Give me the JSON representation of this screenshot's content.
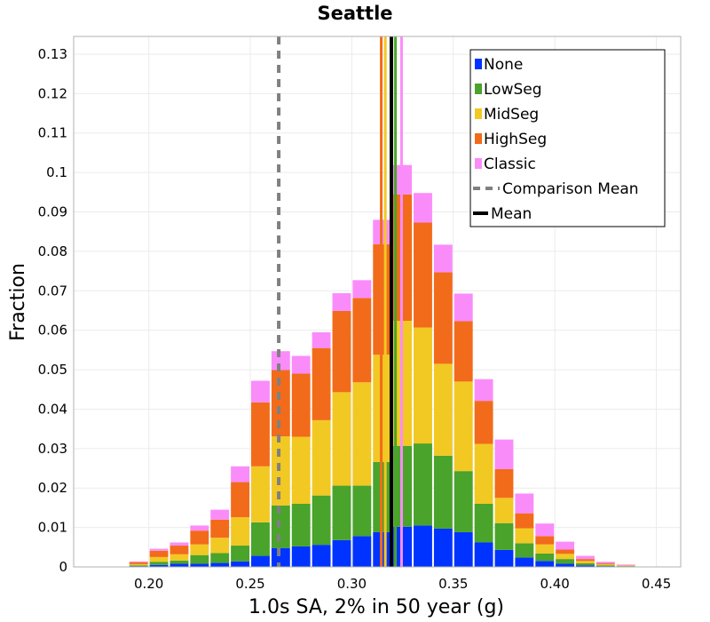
{
  "chart_data": {
    "type": "bar",
    "subtype": "stacked-histogram",
    "title": "Seattle",
    "xlabel": "1.0s SA, 2% in 50 year (g)",
    "ylabel": "Fraction",
    "xlim": [
      0.163,
      0.462
    ],
    "ylim": [
      0,
      0.1345
    ],
    "grid": true,
    "legend_position": "top-right",
    "x_ticks": [
      {
        "value": 0.2,
        "label": "0.20"
      },
      {
        "value": 0.25,
        "label": "0.25"
      },
      {
        "value": 0.3,
        "label": "0.30"
      },
      {
        "value": 0.35,
        "label": "0.35"
      },
      {
        "value": 0.4,
        "label": "0.40"
      },
      {
        "value": 0.45,
        "label": "0.45"
      }
    ],
    "y_ticks": [
      {
        "value": 0,
        "label": "0"
      },
      {
        "value": 0.01,
        "label": "0.01"
      },
      {
        "value": 0.02,
        "label": "0.02"
      },
      {
        "value": 0.03,
        "label": "0.03"
      },
      {
        "value": 0.04,
        "label": "0.04"
      },
      {
        "value": 0.05,
        "label": "0.05"
      },
      {
        "value": 0.06,
        "label": "0.06"
      },
      {
        "value": 0.07,
        "label": "0.07"
      },
      {
        "value": 0.08,
        "label": "0.08"
      },
      {
        "value": 0.09,
        "label": "0.09"
      },
      {
        "value": 0.1,
        "label": "0.1"
      },
      {
        "value": 0.11,
        "label": "0.11"
      },
      {
        "value": 0.12,
        "label": "0.12"
      },
      {
        "value": 0.13,
        "label": "0.13"
      }
    ],
    "bin_width": 0.01,
    "bin_centers": [
      0.175,
      0.185,
      0.195,
      0.205,
      0.215,
      0.225,
      0.235,
      0.245,
      0.255,
      0.265,
      0.275,
      0.285,
      0.295,
      0.305,
      0.315,
      0.325,
      0.335,
      0.345,
      0.355,
      0.365,
      0.375,
      0.385,
      0.395,
      0.405,
      0.415,
      0.425,
      0.435,
      0.445,
      0.455
    ],
    "series": [
      {
        "name": "None",
        "color": "#0033ff",
        "values": [
          0,
          0,
          0.0002,
          0.0005,
          0.0008,
          0.0008,
          0.001,
          0.0014,
          0.0028,
          0.0048,
          0.0052,
          0.0056,
          0.0068,
          0.0078,
          0.0088,
          0.0102,
          0.0105,
          0.0097,
          0.0088,
          0.0062,
          0.0043,
          0.0024,
          0.0015,
          0.0008,
          0.0004,
          0.0002,
          0.0001,
          0,
          0
        ]
      },
      {
        "name": "LowSeg",
        "color": "#4aa32a",
        "values": [
          0,
          0,
          0.0002,
          0.0008,
          0.0008,
          0.0022,
          0.0025,
          0.004,
          0.0085,
          0.0108,
          0.0108,
          0.0125,
          0.0138,
          0.0128,
          0.0178,
          0.0205,
          0.0208,
          0.0185,
          0.0155,
          0.0098,
          0.0068,
          0.0036,
          0.0019,
          0.0012,
          0.0005,
          0.0002,
          0.0001,
          0,
          0
        ]
      },
      {
        "name": "MidSeg",
        "color": "#f2c823",
        "values": [
          0,
          0,
          0.0003,
          0.0012,
          0.0016,
          0.0027,
          0.0039,
          0.0072,
          0.0142,
          0.0175,
          0.017,
          0.0191,
          0.0237,
          0.0262,
          0.0272,
          0.0317,
          0.0294,
          0.0233,
          0.0227,
          0.0152,
          0.0064,
          0.0038,
          0.0023,
          0.0013,
          0.0006,
          0.0003,
          0.0001,
          0,
          0
        ]
      },
      {
        "name": "HighSeg",
        "color": "#f26b1a",
        "values": [
          0.0001,
          0.0001,
          0.0005,
          0.0016,
          0.0022,
          0.0035,
          0.0046,
          0.0089,
          0.0162,
          0.0168,
          0.016,
          0.0183,
          0.0206,
          0.0214,
          0.028,
          0.032,
          0.0266,
          0.0232,
          0.0153,
          0.0109,
          0.0073,
          0.0038,
          0.0021,
          0.0011,
          0.0005,
          0.0002,
          0.0001,
          0,
          0
        ]
      },
      {
        "name": "Classic",
        "color": "#fa8cfa",
        "values": [
          0,
          0,
          0.0002,
          0.0005,
          0.0008,
          0.0013,
          0.0025,
          0.004,
          0.0055,
          0.0048,
          0.0045,
          0.004,
          0.0045,
          0.0045,
          0.0062,
          0.0075,
          0.0075,
          0.007,
          0.007,
          0.0055,
          0.0075,
          0.005,
          0.0032,
          0.002,
          0.0008,
          0.0004,
          0.0002,
          0,
          0
        ]
      }
    ],
    "vertical_lines": [
      {
        "name": "Comparison Mean",
        "x": 0.264,
        "color": "#808080",
        "style": "dashed"
      },
      {
        "name": "Mean",
        "x": 0.3195,
        "color": "#000000",
        "style": "solid"
      },
      {
        "x": 0.3145,
        "color": "#f26b1a",
        "style": "solid"
      },
      {
        "x": 0.3165,
        "color": "#f2c823",
        "style": "solid"
      },
      {
        "x": 0.3215,
        "color": "#4aa32a",
        "style": "solid"
      },
      {
        "x": 0.3245,
        "color": "#fa8cfa",
        "style": "solid"
      }
    ],
    "legend": [
      {
        "label": "None",
        "kind": "box",
        "color": "#0033ff"
      },
      {
        "label": "LowSeg",
        "kind": "box",
        "color": "#4aa32a"
      },
      {
        "label": "MidSeg",
        "kind": "box",
        "color": "#f2c823"
      },
      {
        "label": "HighSeg",
        "kind": "box",
        "color": "#f26b1a"
      },
      {
        "label": "Classic",
        "kind": "box",
        "color": "#fa8cfa"
      },
      {
        "label": "Comparison Mean",
        "kind": "dashed-line",
        "color": "#808080"
      },
      {
        "label": "Mean",
        "kind": "solid-line",
        "color": "#000000"
      }
    ]
  }
}
